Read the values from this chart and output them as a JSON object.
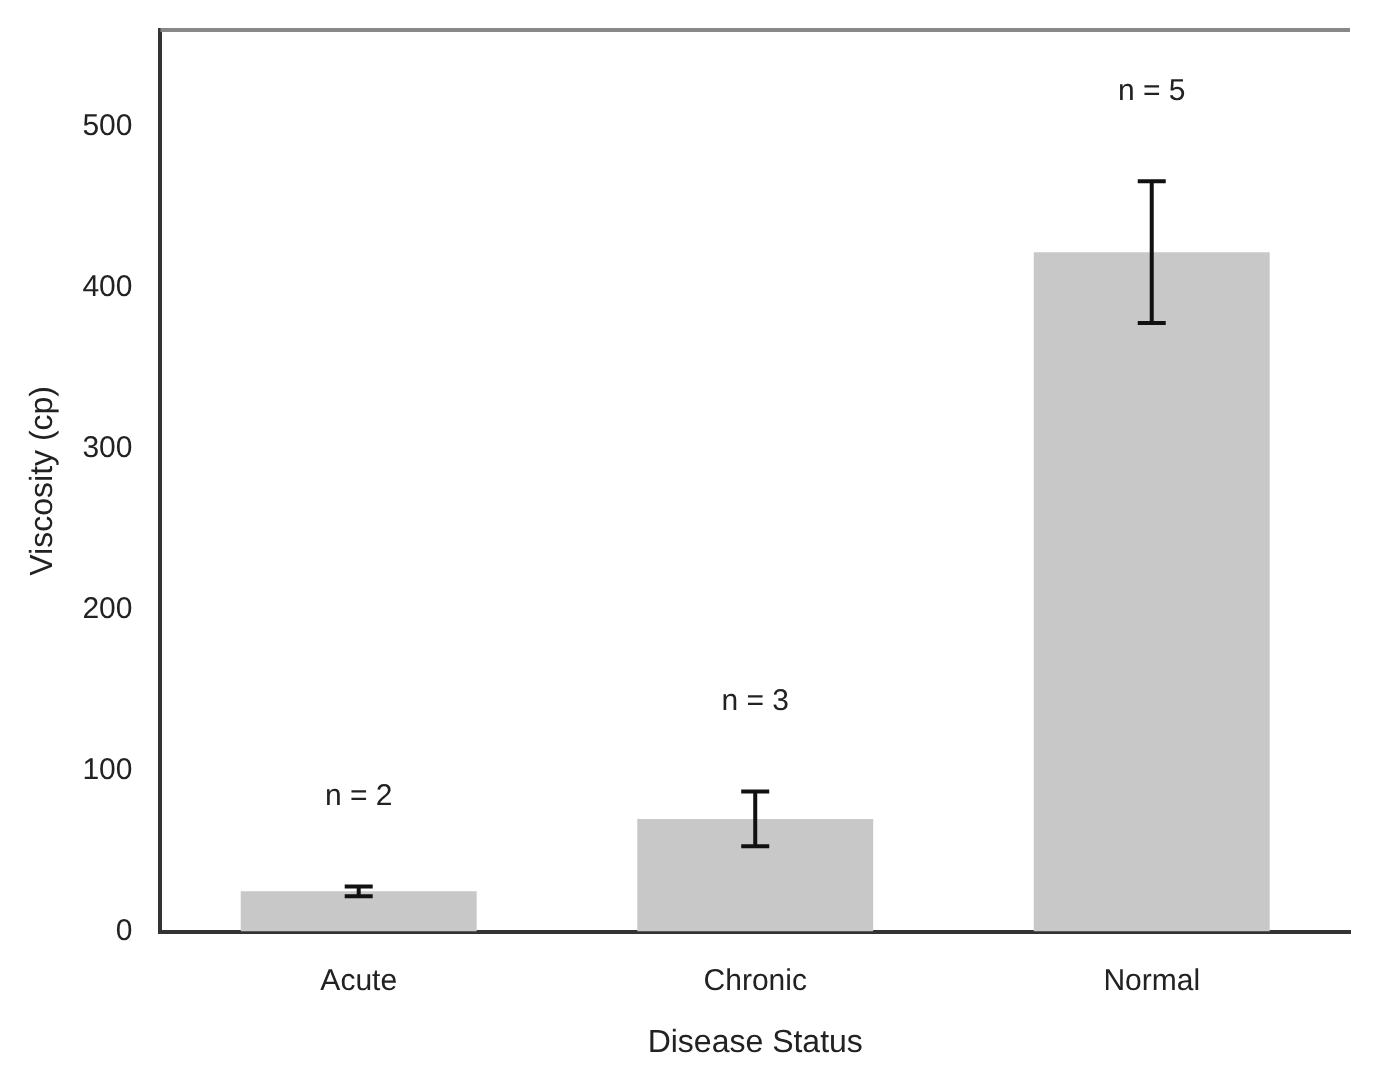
{
  "chart_data": {
    "type": "bar",
    "xlabel": "Disease Status",
    "ylabel": "Viscosity (cp)",
    "categories": [
      "Acute",
      "Chronic",
      "Normal"
    ],
    "values": [
      25,
      70,
      422
    ],
    "errors": [
      3,
      17,
      44
    ],
    "color": "#c8c8c8",
    "ylim": [
      0,
      560
    ],
    "yticks": [
      0,
      100,
      200,
      300,
      400,
      500
    ],
    "grid": false,
    "legend": false,
    "annotations": [
      "n = 2",
      "n = 3",
      "n = 5"
    ]
  }
}
